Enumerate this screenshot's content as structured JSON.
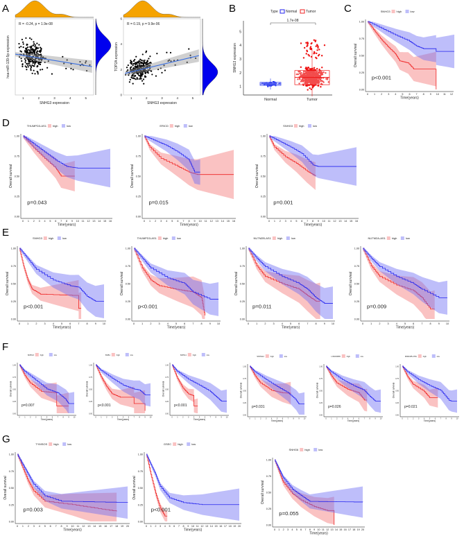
{
  "panel_letters": [
    "A",
    "B",
    "C",
    "D",
    "E",
    "F",
    "G"
  ],
  "common": {
    "ylabel": "Overall survival",
    "xlabel": "Time(years)",
    "high": "high",
    "low": "low",
    "yticks": [
      "0.00",
      "0.25",
      "0.50",
      "0.75",
      "1.00"
    ],
    "colors": {
      "high": "#ee2222",
      "low": "#2222ee",
      "high_ci": "rgba(245,120,120,0.45)",
      "low_ci": "rgba(110,110,245,0.45)",
      "density_top": "#f5a300",
      "density_right": "#0000ee",
      "regression": "#3a6fe0"
    }
  },
  "chart_data": [
    {
      "type": "scatter",
      "id": "A1",
      "xlabel": "SNHG3 expression",
      "ylabel": "hsa-miR-139-5p expression",
      "annotation": "R = -0.24, p = 1.9e-08",
      "xticks": [
        "1",
        "2",
        "3",
        "4",
        "5"
      ],
      "xlim": [
        0.5,
        5.5
      ],
      "regression": [
        [
          0.5,
          0.55
        ],
        [
          5.4,
          0.32
        ]
      ]
    },
    {
      "type": "scatter",
      "id": "A2",
      "xlabel": "SNHG3 expression",
      "ylabel": "TOP2A expression",
      "annotation": "R = 0.19, p = 9.9e-06",
      "xticks": [
        "1",
        "2",
        "3",
        "4",
        "5"
      ],
      "yticks": [
        "0",
        "2",
        "4",
        "6"
      ],
      "xlim": [
        0.5,
        5.5
      ],
      "regression": [
        [
          0.6,
          1.7
        ],
        [
          5.4,
          3.1
        ]
      ]
    },
    {
      "type": "box",
      "id": "B",
      "legend_title": "Type",
      "categories": [
        "Normal",
        "Tumor"
      ],
      "ylabel": "SNHG3 expression",
      "yticks": [
        "1",
        "2",
        "3",
        "4",
        "5"
      ],
      "ylim": [
        0.4,
        5.8
      ],
      "pvalue": "1.7e-08",
      "boxes": [
        {
          "name": "Normal",
          "q1": 1.1,
          "median": 1.2,
          "q3": 1.32,
          "min": 0.8,
          "max": 1.6
        },
        {
          "name": "Tumor",
          "q1": 1.15,
          "median": 1.68,
          "q3": 2.18,
          "min": 0.3,
          "max": 3.7
        }
      ]
    },
    {
      "type": "line",
      "id": "C",
      "gene": "SNHG3",
      "p": "p<0.001",
      "xmax": 12,
      "high": [
        [
          0,
          1
        ],
        [
          1,
          0.86
        ],
        [
          2,
          0.73
        ],
        [
          3,
          0.62
        ],
        [
          4,
          0.52
        ],
        [
          4.6,
          0.42
        ],
        [
          5.8,
          0.39
        ],
        [
          6.6,
          0.3
        ],
        [
          9.8,
          0.3
        ],
        [
          9.8,
          0
        ]
      ],
      "low": [
        [
          0,
          1
        ],
        [
          2,
          0.9
        ],
        [
          4,
          0.8
        ],
        [
          6,
          0.71
        ],
        [
          7,
          0.64
        ],
        [
          8,
          0.6
        ],
        [
          9.8,
          0.6
        ],
        [
          9.8,
          0.56
        ],
        [
          12.4,
          0.56
        ]
      ]
    },
    {
      "type": "line",
      "id": "D1",
      "gene": "THUMPD3-AS1",
      "p": "p=0.043",
      "xmax": 16,
      "high": [
        [
          0,
          1
        ],
        [
          2,
          0.85
        ],
        [
          4,
          0.72
        ],
        [
          6,
          0.6
        ],
        [
          7,
          0.5
        ],
        [
          9.5,
          0.5
        ]
      ],
      "low": [
        [
          0,
          1
        ],
        [
          2,
          0.9
        ],
        [
          4,
          0.8
        ],
        [
          6,
          0.7
        ],
        [
          8,
          0.62
        ],
        [
          10,
          0.6
        ],
        [
          16,
          0.6
        ]
      ]
    },
    {
      "type": "line",
      "id": "D2",
      "gene": "ERICD",
      "p": "p=0.015",
      "xmax": 16,
      "high": [
        [
          0,
          1
        ],
        [
          1,
          0.86
        ],
        [
          3,
          0.72
        ],
        [
          6,
          0.62
        ],
        [
          8,
          0.55
        ],
        [
          9.5,
          0.52
        ],
        [
          16,
          0.52
        ]
      ],
      "low": [
        [
          0,
          1
        ],
        [
          2,
          0.94
        ],
        [
          4,
          0.88
        ],
        [
          6,
          0.8
        ],
        [
          8,
          0.7
        ],
        [
          9,
          0.55
        ],
        [
          10,
          0.55
        ]
      ]
    },
    {
      "type": "line",
      "id": "D3",
      "gene": "SNHG3",
      "p": "p=0.001",
      "xmax": 16,
      "high": [
        [
          0,
          1
        ],
        [
          1,
          0.86
        ],
        [
          3,
          0.74
        ],
        [
          5,
          0.66
        ],
        [
          7,
          0.56
        ],
        [
          8.5,
          0.5
        ]
      ],
      "low": [
        [
          0,
          1
        ],
        [
          2,
          0.93
        ],
        [
          4,
          0.86
        ],
        [
          6,
          0.78
        ],
        [
          8,
          0.64
        ],
        [
          9,
          0.62
        ],
        [
          16,
          0.62
        ]
      ]
    },
    {
      "type": "line",
      "id": "E1",
      "gene": "SNHG3",
      "p": "p<0.001",
      "xmax": 10,
      "high": [
        [
          0,
          1
        ],
        [
          0.5,
          0.75
        ],
        [
          1,
          0.55
        ],
        [
          1.5,
          0.42
        ],
        [
          2.5,
          0.35
        ],
        [
          7,
          0.33
        ],
        [
          7,
          0.15
        ],
        [
          7.3,
          0.15
        ]
      ],
      "low": [
        [
          0,
          1
        ],
        [
          1,
          0.85
        ],
        [
          2,
          0.7
        ],
        [
          4,
          0.55
        ],
        [
          6,
          0.47
        ],
        [
          7,
          0.45
        ],
        [
          8,
          0.32
        ],
        [
          9,
          0.25
        ],
        [
          10,
          0.25
        ]
      ]
    },
    {
      "type": "line",
      "id": "E2",
      "gene": "THUMPD3-AS1",
      "p": "p<0.001",
      "xmax": 10,
      "high": [
        [
          0,
          1
        ],
        [
          1,
          0.72
        ],
        [
          2,
          0.55
        ],
        [
          3,
          0.47
        ],
        [
          5,
          0.42
        ],
        [
          7,
          0.38
        ],
        [
          8,
          0.3
        ],
        [
          8.4,
          0.05
        ]
      ],
      "low": [
        [
          0,
          1
        ],
        [
          1,
          0.86
        ],
        [
          2,
          0.72
        ],
        [
          4,
          0.58
        ],
        [
          6,
          0.5
        ],
        [
          7,
          0.38
        ],
        [
          9,
          0.28
        ],
        [
          10,
          0.28
        ]
      ]
    },
    {
      "type": "line",
      "id": "E3",
      "gene": "NUTM2B-AS1",
      "p": "p=0.011",
      "xmax": 10,
      "high": [
        [
          0,
          1
        ],
        [
          1,
          0.75
        ],
        [
          2,
          0.6
        ],
        [
          4,
          0.5
        ],
        [
          6,
          0.42
        ],
        [
          7,
          0.33
        ],
        [
          8,
          0.25
        ],
        [
          8.5,
          0.25
        ]
      ],
      "low": [
        [
          0,
          1
        ],
        [
          1,
          0.86
        ],
        [
          2,
          0.74
        ],
        [
          4,
          0.6
        ],
        [
          6,
          0.5
        ],
        [
          7,
          0.42
        ],
        [
          8,
          0.3
        ],
        [
          9,
          0.22
        ],
        [
          10,
          0.22
        ]
      ]
    },
    {
      "type": "line",
      "id": "E4",
      "gene": "NUTM2A-AS1",
      "p": "p=0.009",
      "xmax": 10,
      "high": [
        [
          0,
          1
        ],
        [
          1,
          0.75
        ],
        [
          2,
          0.6
        ],
        [
          4,
          0.48
        ],
        [
          6,
          0.4
        ],
        [
          7,
          0.3
        ],
        [
          8,
          0.14
        ],
        [
          8.5,
          0.14
        ]
      ],
      "low": [
        [
          0,
          1
        ],
        [
          1,
          0.86
        ],
        [
          2,
          0.74
        ],
        [
          4,
          0.6
        ],
        [
          6,
          0.5
        ],
        [
          7,
          0.42
        ],
        [
          9,
          0.3
        ],
        [
          10,
          0.3
        ]
      ]
    },
    {
      "type": "line",
      "id": "F1",
      "gene": "SNHG3",
      "p": "p=0.007",
      "xmax": 10,
      "high": [
        [
          0,
          1
        ],
        [
          1,
          0.78
        ],
        [
          2,
          0.62
        ],
        [
          4,
          0.45
        ],
        [
          6.8,
          0.42
        ],
        [
          6.8,
          0.15
        ],
        [
          9,
          0.15
        ]
      ],
      "low": [
        [
          0,
          1
        ],
        [
          1,
          0.86
        ],
        [
          3,
          0.68
        ],
        [
          5,
          0.5
        ],
        [
          7,
          0.42
        ],
        [
          8.5,
          0.28
        ],
        [
          9,
          0.2
        ],
        [
          10,
          0.2
        ]
      ]
    },
    {
      "type": "line",
      "id": "F2",
      "gene": "BUB1",
      "p": "p<0.001",
      "xmax": 10,
      "high": [
        [
          0,
          1
        ],
        [
          1,
          0.75
        ],
        [
          2,
          0.55
        ],
        [
          3,
          0.4
        ],
        [
          4.5,
          0.33
        ],
        [
          7,
          0.33
        ],
        [
          7,
          0.2
        ],
        [
          9,
          0.2
        ],
        [
          9,
          0.05
        ]
      ],
      "low": [
        [
          0,
          1
        ],
        [
          1,
          0.88
        ],
        [
          3,
          0.72
        ],
        [
          5,
          0.58
        ],
        [
          7,
          0.5
        ],
        [
          8,
          0.48
        ],
        [
          9,
          0.38
        ],
        [
          10,
          0.38
        ]
      ]
    },
    {
      "type": "line",
      "id": "F3",
      "gene": "SNHG1",
      "p": "p<0.001",
      "xmax": 10,
      "high": [
        [
          0,
          1
        ],
        [
          1,
          0.72
        ],
        [
          2,
          0.52
        ],
        [
          3,
          0.4
        ],
        [
          4,
          0.36
        ],
        [
          4,
          0.15
        ],
        [
          4.7,
          0.15
        ]
      ],
      "low": [
        [
          0,
          1
        ],
        [
          1,
          0.86
        ],
        [
          3,
          0.7
        ],
        [
          5,
          0.58
        ],
        [
          7,
          0.45
        ],
        [
          8,
          0.35
        ],
        [
          9,
          0.25
        ],
        [
          10,
          0.25
        ]
      ]
    },
    {
      "type": "line",
      "id": "F4",
      "gene": "SNHG12",
      "p": "p=0.031",
      "xmax": 10,
      "high": [
        [
          0,
          1
        ],
        [
          1,
          0.8
        ],
        [
          2,
          0.65
        ],
        [
          4,
          0.5
        ],
        [
          6,
          0.45
        ],
        [
          7.5,
          0.44
        ]
      ],
      "low": [
        [
          0,
          1
        ],
        [
          1,
          0.88
        ],
        [
          3,
          0.72
        ],
        [
          5,
          0.58
        ],
        [
          7,
          0.45
        ],
        [
          8.5,
          0.3
        ],
        [
          9,
          0.22
        ],
        [
          10,
          0.22
        ]
      ]
    },
    {
      "type": "line",
      "id": "F5",
      "gene": "LINC00665",
      "p": "p=0.026",
      "xmax": 10,
      "high": [
        [
          0,
          1
        ],
        [
          1,
          0.8
        ],
        [
          2,
          0.65
        ],
        [
          4,
          0.52
        ],
        [
          6,
          0.45
        ],
        [
          7,
          0.3
        ],
        [
          7.5,
          0.3
        ]
      ],
      "low": [
        [
          0,
          1
        ],
        [
          1,
          0.88
        ],
        [
          3,
          0.72
        ],
        [
          5,
          0.6
        ],
        [
          7,
          0.5
        ],
        [
          8,
          0.38
        ],
        [
          9,
          0.28
        ],
        [
          10,
          0.28
        ]
      ]
    },
    {
      "type": "line",
      "id": "F6",
      "gene": "MIR4435-2HG",
      "p": "p=0.021",
      "xmax": 10,
      "high": [
        [
          0,
          1
        ],
        [
          1,
          0.78
        ],
        [
          2,
          0.62
        ],
        [
          4,
          0.48
        ],
        [
          5,
          0.35
        ],
        [
          6.5,
          0.35
        ]
      ],
      "low": [
        [
          0,
          1
        ],
        [
          1,
          0.88
        ],
        [
          3,
          0.72
        ],
        [
          5,
          0.6
        ],
        [
          7,
          0.5
        ],
        [
          8.5,
          0.3
        ],
        [
          9,
          0.28
        ],
        [
          10,
          0.28
        ]
      ]
    },
    {
      "type": "line",
      "id": "G1",
      "gene": "TYMSOS",
      "p": "p=0.003",
      "xmax": 20,
      "high": [
        [
          0,
          1
        ],
        [
          1,
          0.8
        ],
        [
          2,
          0.6
        ],
        [
          3,
          0.45
        ],
        [
          5,
          0.3
        ],
        [
          10,
          0.25
        ],
        [
          14,
          0.2
        ],
        [
          18,
          0.15
        ]
      ],
      "low": [
        [
          0,
          1
        ],
        [
          1,
          0.85
        ],
        [
          2,
          0.7
        ],
        [
          3,
          0.55
        ],
        [
          5,
          0.38
        ],
        [
          8,
          0.3
        ],
        [
          20,
          0.28
        ]
      ]
    },
    {
      "type": "line",
      "id": "G2",
      "gene": "GSEC",
      "p": "p<0.001",
      "xmax": 20,
      "high": [
        [
          0,
          1
        ],
        [
          1,
          0.7
        ],
        [
          2,
          0.42
        ],
        [
          3,
          0.2
        ],
        [
          4,
          0.08
        ],
        [
          4.5,
          0.08
        ]
      ],
      "low": [
        [
          0,
          1
        ],
        [
          1,
          0.85
        ],
        [
          2,
          0.7
        ],
        [
          3,
          0.52
        ],
        [
          5,
          0.35
        ],
        [
          8,
          0.28
        ],
        [
          12,
          0.25
        ],
        [
          20,
          0.25
        ]
      ]
    },
    {
      "type": "line",
      "id": "G3",
      "gene": "SNHG6",
      "p": "p=0.055",
      "xmax": 20,
      "high": [
        [
          0,
          1
        ],
        [
          1,
          0.82
        ],
        [
          2,
          0.65
        ],
        [
          4,
          0.48
        ],
        [
          6,
          0.38
        ],
        [
          9,
          0.28
        ],
        [
          12,
          0.22
        ],
        [
          13.5,
          0.22
        ],
        [
          13.5,
          0
        ]
      ],
      "low": [
        [
          0,
          1
        ],
        [
          1,
          0.86
        ],
        [
          2,
          0.72
        ],
        [
          4,
          0.55
        ],
        [
          6,
          0.45
        ],
        [
          8,
          0.36
        ],
        [
          20,
          0.35
        ]
      ]
    }
  ]
}
